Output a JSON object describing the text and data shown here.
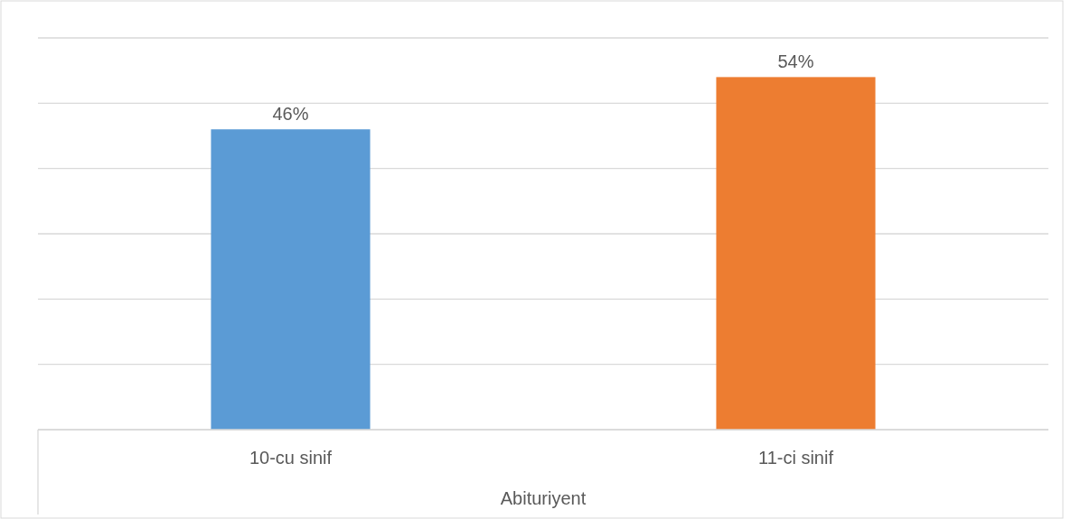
{
  "chart_data": {
    "type": "bar",
    "xlabel": "Abituriyent",
    "categories": [
      "10-cu sinif",
      "11-ci sinif"
    ],
    "values": [
      46,
      54
    ],
    "colors": [
      "#5b9bd5",
      "#ed7d31"
    ],
    "value_labels": [
      "46%",
      "54%"
    ],
    "ylim": [
      0,
      60
    ],
    "yticks": [
      {
        "value": 0,
        "label": null
      },
      {
        "value": 10,
        "label": null
      },
      {
        "value": 20,
        "label": null
      },
      {
        "value": 30,
        "label": null
      },
      {
        "value": 40,
        "label": null
      },
      {
        "value": 50,
        "label": null
      },
      {
        "value": 60,
        "label": null
      }
    ],
    "grid": "y",
    "tick_labels": "x"
  }
}
